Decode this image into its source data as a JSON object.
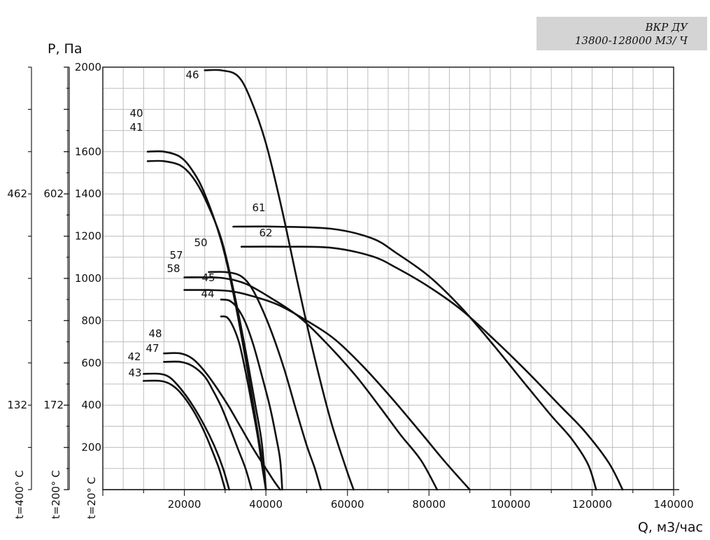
{
  "badge": {
    "line1": "ВКР ДУ",
    "line2": "13800-128000 М3/ Ч"
  },
  "chart_data": {
    "type": "line",
    "xlabel": "Q, м3/час",
    "ylabel": "P, Па",
    "xlim": [
      0,
      140000
    ],
    "ylim": [
      0,
      2000
    ],
    "grid": true,
    "x_ticks": [
      "20000",
      "40000",
      "60000",
      "80000",
      "100000",
      "120000",
      "140000"
    ],
    "y_ticks": [
      "200",
      "400",
      "600",
      "800",
      "1000",
      "1200",
      "1400",
      "1600",
      "2000"
    ],
    "secondary_axes": [
      {
        "label": "t=200° C",
        "ticks": [
          "172",
          "602"
        ]
      },
      {
        "label": "t=400° C",
        "ticks": [
          "132",
          "462"
        ]
      }
    ],
    "primary_axis_label": "t=20° C",
    "series": [
      {
        "name": "46",
        "points": [
          [
            25000,
            1985
          ],
          [
            29000,
            1985
          ],
          [
            33000,
            1960
          ],
          [
            36000,
            1860
          ],
          [
            40000,
            1640
          ],
          [
            44000,
            1320
          ],
          [
            48000,
            960
          ],
          [
            52000,
            620
          ],
          [
            56000,
            320
          ],
          [
            59500,
            110
          ],
          [
            61500,
            0
          ]
        ]
      },
      {
        "name": "40",
        "points": [
          [
            11000,
            1600
          ],
          [
            15000,
            1600
          ],
          [
            19000,
            1575
          ],
          [
            22000,
            1510
          ],
          [
            25000,
            1400
          ],
          [
            29000,
            1180
          ],
          [
            32000,
            930
          ],
          [
            35000,
            620
          ],
          [
            37500,
            330
          ],
          [
            39000,
            150
          ],
          [
            40000,
            0
          ]
        ]
      },
      {
        "name": "41",
        "points": [
          [
            11000,
            1555
          ],
          [
            15000,
            1555
          ],
          [
            19000,
            1535
          ],
          [
            22000,
            1480
          ],
          [
            25000,
            1380
          ],
          [
            29000,
            1190
          ],
          [
            32000,
            950
          ],
          [
            35000,
            660
          ],
          [
            37500,
            390
          ],
          [
            39000,
            220
          ],
          [
            40000,
            0
          ]
        ]
      },
      {
        "name": "61",
        "points": [
          [
            32000,
            1245
          ],
          [
            42000,
            1245
          ],
          [
            56000,
            1235
          ],
          [
            66000,
            1190
          ],
          [
            72000,
            1120
          ],
          [
            80000,
            1010
          ],
          [
            88000,
            860
          ],
          [
            96000,
            680
          ],
          [
            104000,
            490
          ],
          [
            110000,
            350
          ],
          [
            115000,
            240
          ],
          [
            119000,
            120
          ],
          [
            121000,
            0
          ]
        ]
      },
      {
        "name": "62",
        "points": [
          [
            34000,
            1150
          ],
          [
            44000,
            1150
          ],
          [
            56000,
            1145
          ],
          [
            66000,
            1105
          ],
          [
            72000,
            1050
          ],
          [
            80000,
            960
          ],
          [
            88000,
            850
          ],
          [
            96000,
            710
          ],
          [
            104000,
            560
          ],
          [
            112000,
            400
          ],
          [
            118000,
            280
          ],
          [
            124000,
            130
          ],
          [
            127500,
            0
          ]
        ]
      },
      {
        "name": "50",
        "points": [
          [
            26000,
            1030
          ],
          [
            30000,
            1030
          ],
          [
            33500,
            1015
          ],
          [
            36000,
            970
          ],
          [
            38500,
            880
          ],
          [
            41500,
            740
          ],
          [
            44500,
            570
          ],
          [
            47500,
            370
          ],
          [
            50000,
            210
          ],
          [
            52000,
            100
          ],
          [
            53500,
            0
          ]
        ]
      },
      {
        "name": "57",
        "points": [
          [
            20000,
            1005
          ],
          [
            26000,
            1005
          ],
          [
            30000,
            1000
          ],
          [
            35000,
            975
          ],
          [
            41000,
            910
          ],
          [
            48000,
            820
          ],
          [
            55000,
            690
          ],
          [
            62000,
            540
          ],
          [
            68000,
            390
          ],
          [
            73000,
            260
          ],
          [
            78000,
            140
          ],
          [
            82000,
            0
          ]
        ]
      },
      {
        "name": "58",
        "points": [
          [
            20000,
            945
          ],
          [
            26000,
            945
          ],
          [
            31000,
            940
          ],
          [
            36000,
            920
          ],
          [
            43000,
            875
          ],
          [
            50000,
            800
          ],
          [
            57000,
            710
          ],
          [
            64000,
            580
          ],
          [
            71000,
            430
          ],
          [
            78000,
            270
          ],
          [
            84000,
            130
          ],
          [
            90000,
            0
          ]
        ]
      },
      {
        "name": "45",
        "points": [
          [
            29000,
            900
          ],
          [
            31000,
            895
          ],
          [
            33000,
            860
          ],
          [
            35000,
            790
          ],
          [
            37000,
            680
          ],
          [
            39000,
            540
          ],
          [
            41000,
            390
          ],
          [
            42500,
            250
          ],
          [
            43500,
            140
          ],
          [
            44000,
            0
          ]
        ]
      },
      {
        "name": "44",
        "points": [
          [
            29000,
            820
          ],
          [
            30500,
            815
          ],
          [
            32000,
            770
          ],
          [
            33500,
            690
          ],
          [
            35000,
            560
          ],
          [
            36500,
            410
          ],
          [
            38000,
            250
          ],
          [
            39000,
            120
          ],
          [
            40000,
            0
          ]
        ]
      },
      {
        "name": "48",
        "points": [
          [
            15000,
            645
          ],
          [
            19000,
            645
          ],
          [
            22000,
            620
          ],
          [
            25000,
            560
          ],
          [
            28000,
            480
          ],
          [
            31000,
            390
          ],
          [
            34000,
            290
          ],
          [
            37000,
            190
          ],
          [
            40000,
            100
          ],
          [
            42000,
            40
          ],
          [
            43500,
            0
          ]
        ]
      },
      {
        "name": "47",
        "points": [
          [
            15000,
            605
          ],
          [
            19000,
            605
          ],
          [
            22000,
            585
          ],
          [
            25000,
            535
          ],
          [
            27000,
            470
          ],
          [
            29000,
            395
          ],
          [
            31000,
            300
          ],
          [
            33000,
            200
          ],
          [
            35000,
            100
          ],
          [
            36500,
            0
          ]
        ]
      },
      {
        "name": "42",
        "points": [
          [
            10000,
            548
          ],
          [
            14000,
            548
          ],
          [
            16500,
            530
          ],
          [
            19000,
            480
          ],
          [
            22000,
            400
          ],
          [
            25000,
            300
          ],
          [
            27500,
            200
          ],
          [
            29500,
            100
          ],
          [
            31000,
            0
          ]
        ]
      },
      {
        "name": "43",
        "points": [
          [
            10000,
            515
          ],
          [
            14000,
            515
          ],
          [
            16500,
            500
          ],
          [
            19000,
            460
          ],
          [
            22000,
            380
          ],
          [
            24500,
            290
          ],
          [
            26500,
            200
          ],
          [
            28500,
            100
          ],
          [
            30000,
            0
          ]
        ]
      }
    ]
  }
}
